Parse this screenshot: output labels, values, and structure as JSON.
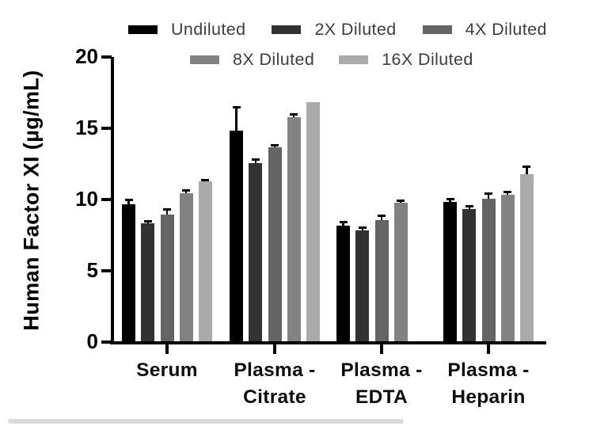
{
  "chart_data": {
    "type": "bar",
    "title": "",
    "xlabel": "",
    "ylabel": "Human Factor XI (µg/mL)",
    "ylim": [
      0,
      20
    ],
    "yticks": [
      0,
      5,
      10,
      15,
      20
    ],
    "grid": false,
    "legend_position": "top",
    "group_names": [
      "Serum",
      "Plasma - Citrate",
      "Plasma - EDTA",
      "Plasma - Heparin"
    ],
    "categories": [
      [
        "Serum"
      ],
      [
        "Plasma -",
        "Citrate"
      ],
      [
        "Plasma -",
        "EDTA"
      ],
      [
        "Plasma -",
        "Heparin"
      ]
    ],
    "series": [
      {
        "name": "Undiluted",
        "color": "#000000",
        "values": [
          9.6,
          14.8,
          8.1,
          9.8
        ],
        "errors": [
          0.3,
          1.6,
          0.25,
          0.2
        ]
      },
      {
        "name": "2X Diluted",
        "color": "#323232",
        "values": [
          8.3,
          12.5,
          7.8,
          9.3
        ],
        "errors": [
          0.1,
          0.25,
          0.2,
          0.2
        ]
      },
      {
        "name": "4X Diluted",
        "color": "#646464",
        "values": [
          8.9,
          13.6,
          8.5,
          10.0
        ],
        "errors": [
          0.35,
          0.15,
          0.3,
          0.35
        ]
      },
      {
        "name": "8X Diluted",
        "color": "#828282",
        "values": [
          10.4,
          15.7,
          9.7,
          10.3
        ],
        "errors": [
          0.2,
          0.2,
          0.15,
          0.15
        ]
      },
      {
        "name": "16X Diluted",
        "color": "#aaaaaa",
        "values": [
          11.2,
          16.8,
          null,
          11.7
        ],
        "errors": [
          0.1,
          0,
          null,
          0.55
        ]
      }
    ]
  }
}
